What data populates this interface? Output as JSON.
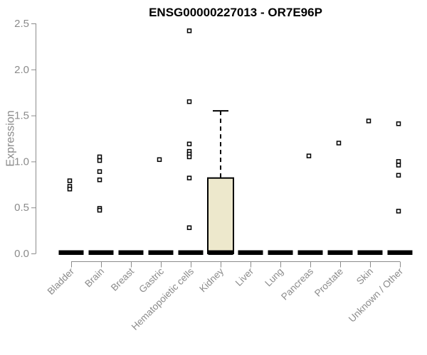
{
  "page": {
    "background": "#FFFFFF"
  },
  "chart_data": {
    "type": "boxplot",
    "title": "ENSG00000227013 - OR7E96P",
    "xlabel": "",
    "ylabel": "Expression",
    "ylim": [
      0,
      2.5
    ],
    "yticks": [
      0.0,
      0.5,
      1.0,
      1.5,
      2.0,
      2.5
    ],
    "grid": false,
    "legend": false,
    "categories": [
      "Bladder",
      "Brain",
      "Breast",
      "Gastric",
      "Hematopoietic cells",
      "Kidney",
      "Liver",
      "Lung",
      "Pancreas",
      "Prostate",
      "Skin",
      "Unknown / Other"
    ],
    "boxes": [
      {
        "category": "Bladder",
        "median": 0,
        "q1": 0,
        "q3": 0,
        "whisker_low": 0,
        "whisker_high": 0,
        "outliers": [
          0.79,
          0.73,
          0.7
        ]
      },
      {
        "category": "Brain",
        "median": 0,
        "q1": 0,
        "q3": 0,
        "whisker_low": 0,
        "whisker_high": 0,
        "outliers": [
          1.05,
          1.01,
          0.89,
          0.8,
          0.49,
          0.47
        ]
      },
      {
        "category": "Breast",
        "median": 0,
        "q1": 0,
        "q3": 0,
        "whisker_low": 0,
        "whisker_high": 0,
        "outliers": []
      },
      {
        "category": "Gastric",
        "median": 0,
        "q1": 0,
        "q3": 0,
        "whisker_low": 0,
        "whisker_high": 0,
        "outliers": [
          1.02
        ]
      },
      {
        "category": "Hematopoietic cells",
        "median": 0,
        "q1": 0,
        "q3": 0,
        "whisker_low": 0,
        "whisker_high": 0,
        "outliers": [
          2.42,
          1.65,
          1.19,
          1.11,
          1.08,
          1.05,
          0.82,
          0.28
        ]
      },
      {
        "category": "Kidney",
        "median": 0,
        "q1": 0,
        "q3": 0.82,
        "whisker_low": 0,
        "whisker_high": 1.55,
        "outliers": []
      },
      {
        "category": "Liver",
        "median": 0,
        "q1": 0,
        "q3": 0,
        "whisker_low": 0,
        "whisker_high": 0,
        "outliers": []
      },
      {
        "category": "Lung",
        "median": 0,
        "q1": 0,
        "q3": 0,
        "whisker_low": 0,
        "whisker_high": 0,
        "outliers": []
      },
      {
        "category": "Pancreas",
        "median": 0,
        "q1": 0,
        "q3": 0,
        "whisker_low": 0,
        "whisker_high": 0,
        "outliers": [
          1.06
        ]
      },
      {
        "category": "Prostate",
        "median": 0,
        "q1": 0,
        "q3": 0,
        "whisker_low": 0,
        "whisker_high": 0,
        "outliers": [
          1.2
        ]
      },
      {
        "category": "Skin",
        "median": 0,
        "q1": 0,
        "q3": 0,
        "whisker_low": 0,
        "whisker_high": 0,
        "outliers": [
          1.44
        ]
      },
      {
        "category": "Unknown / Other",
        "median": 0,
        "q1": 0,
        "q3": 0,
        "whisker_low": 0,
        "whisker_high": 0,
        "outliers": [
          1.41,
          1.0,
          0.96,
          0.85,
          0.46
        ]
      }
    ]
  },
  "styles": {
    "title_color": "#000000",
    "axis_color": "#8B8B8B",
    "tick_label_color": "#8B8B8B",
    "box_fill": "#EDE8CC",
    "box_border": "#000000",
    "whisker_color": "#000000",
    "median_color": "#000000",
    "point_stroke": "#000000",
    "point_fill": "#FFFFFF"
  }
}
